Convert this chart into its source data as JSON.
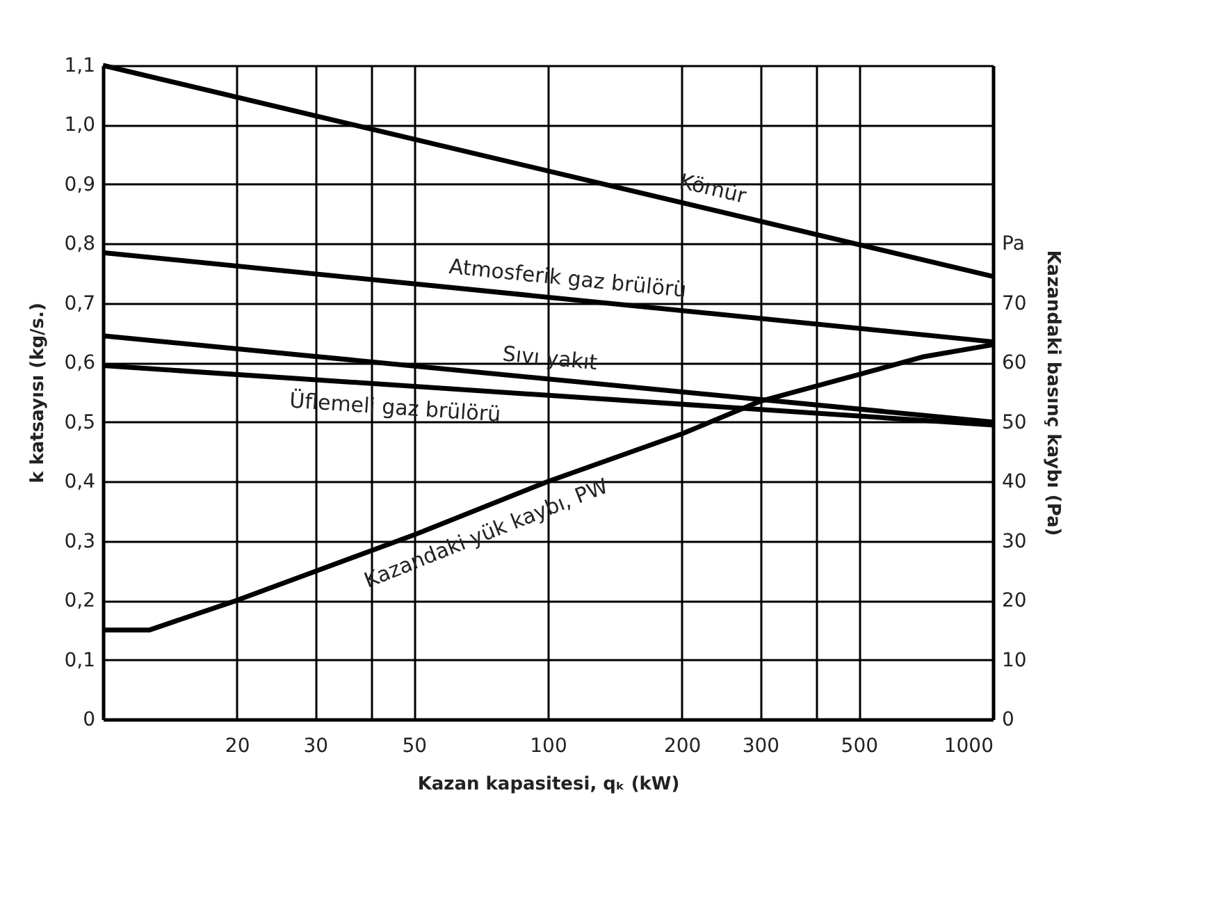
{
  "chart_data": {
    "type": "line",
    "xlabel": "Kazan kapasitesi, qₖ (kW)",
    "ylabel": "k katsayısı (kg/s.)",
    "y2label": "Kazandaki basınç kaybı (Pa)",
    "log": "x",
    "xlim": [
      10,
      1000
    ],
    "xticks": [
      20,
      30,
      {
        "value": 40,
        "label": null
      },
      50,
      100,
      200,
      300,
      {
        "value": 400,
        "label": null
      },
      500,
      1000
    ],
    "ylim": [
      0,
      1.1
    ],
    "yticks": [
      0,
      {
        "value": 0.1,
        "label": "0,1"
      },
      {
        "value": 0.2,
        "label": "0,2"
      },
      {
        "value": 0.3,
        "label": "0,3"
      },
      {
        "value": 0.4,
        "label": "0,4"
      },
      {
        "value": 0.5,
        "label": "0,5"
      },
      {
        "value": 0.6,
        "label": "0,6"
      },
      {
        "value": 0.7,
        "label": "0,7"
      },
      {
        "value": 0.8,
        "label": "0,8"
      },
      {
        "value": 0.9,
        "label": "0,9"
      },
      {
        "value": 1.0,
        "label": "1,0"
      },
      {
        "value": 1.1,
        "label": "1,1"
      }
    ],
    "y2lim": [
      0,
      110
    ],
    "y2ticks": [
      0,
      10,
      20,
      30,
      40,
      50,
      60,
      70,
      {
        "value": 80,
        "label": "Pa"
      }
    ],
    "grid": true,
    "marker": "none",
    "line_style": "solid",
    "series": [
      {
        "name": "Kömür",
        "color": "#000000",
        "x": [
          10,
          1000
        ],
        "values": [
          1.1,
          0.745
        ]
      },
      {
        "name": "Atmosferik gaz brülörü",
        "color": "#000000",
        "x": [
          10,
          1000
        ],
        "values": [
          0.785,
          0.635
        ]
      },
      {
        "name": "Sıvı yakıt",
        "color": "#000000",
        "x": [
          10,
          1000
        ],
        "values": [
          0.645,
          0.5
        ]
      },
      {
        "name": "Üflemeli gaz brülörü",
        "color": "#000000",
        "x": [
          10,
          1000
        ],
        "values": [
          0.595,
          0.495
        ]
      },
      {
        "name": "Kazandaki yük kaybı, PW",
        "color": "#000000",
        "axis": "y2",
        "x": [
          10,
          12.7,
          20,
          50,
          100,
          200,
          300,
          500,
          700,
          1000
        ],
        "values": [
          15,
          15,
          20,
          31,
          40,
          48,
          53.5,
          58,
          61,
          63
        ]
      }
    ]
  }
}
